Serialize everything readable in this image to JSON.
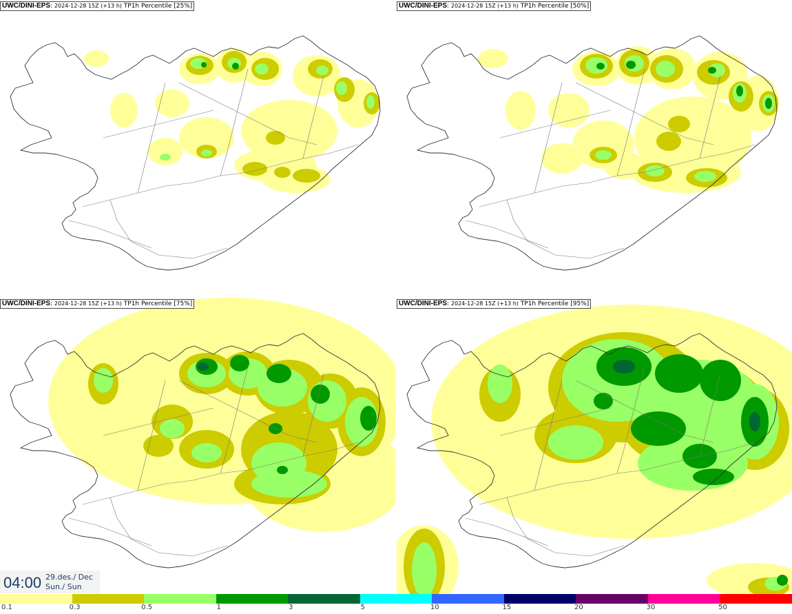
{
  "panels": [
    {
      "model": "UWC/DINI-EPS",
      "meta": "2024-12-28 15Z (+13 h)",
      "param": "TP1h Percentile [25%]"
    },
    {
      "model": "UWC/DINI-EPS",
      "meta": "2024-12-28 15Z (+13 h)",
      "param": "TP1h Percentile [50%]"
    },
    {
      "model": "UWC/DINI-EPS",
      "meta": "2024-12-28 15Z (+13 h)",
      "param": "TP1h Percentile [75%]"
    },
    {
      "model": "UWC/DINI-EPS",
      "meta": "2024-12-28 15Z (+13 h)",
      "param": "TP1h Percentile [95%]"
    }
  ],
  "valid_time": {
    "time": "04:00",
    "date": "29.des./ Dec",
    "day": "Sun./ Sun"
  },
  "legend": {
    "colors": [
      "#ffff99",
      "#cccc00",
      "#99ff66",
      "#009900",
      "#006633",
      "#00ffff",
      "#3366ff",
      "#000066",
      "#660066",
      "#ff0099",
      "#ff0000"
    ],
    "ticks": [
      "0.1",
      "0.3",
      "0.5",
      "1",
      "3",
      "5",
      "10",
      "15",
      "20",
      "30",
      "50"
    ]
  }
}
